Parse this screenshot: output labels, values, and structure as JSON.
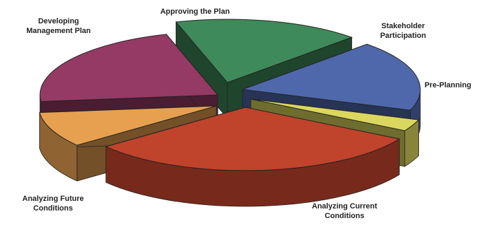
{
  "chart_data": {
    "type": "pie",
    "style": "3d-exploded",
    "unit": "percent of pie (estimated)",
    "slices": [
      {
        "key": "analyzing-current-conditions",
        "label_lines": [
          "Analyzing Current",
          "Conditions"
        ],
        "value": 31,
        "color": "#c0432b"
      },
      {
        "key": "analyzing-future-conditions",
        "label_lines": [
          "Analyzing Future",
          "Conditions"
        ],
        "value": 9,
        "color": "#e6a050"
      },
      {
        "key": "developing-management-plan",
        "label_lines": [
          "Developing",
          "Management Plan"
        ],
        "value": 22,
        "color": "#943a64"
      },
      {
        "key": "approving-the-plan",
        "label_lines": [
          "Approving the Plan"
        ],
        "value": 17,
        "color": "#3f8a5a"
      },
      {
        "key": "stakeholder-participation",
        "label_lines": [
          "Stakeholder",
          "Participation"
        ],
        "value": 18,
        "color": "#4f68ab"
      },
      {
        "key": "pre-planning",
        "label_lines": [
          "Pre-Planning"
        ],
        "value": 3,
        "color": "#dbd75e"
      }
    ]
  }
}
